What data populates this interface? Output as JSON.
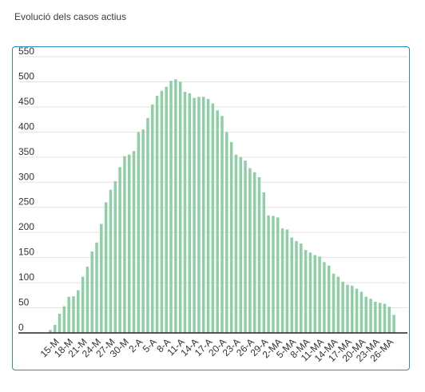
{
  "page_title": "Evolució dels casos actius",
  "chart_data": {
    "type": "bar",
    "title": "",
    "xlabel": "",
    "ylabel": "",
    "ylim": [
      0,
      550
    ],
    "yticks": [
      0,
      50,
      100,
      150,
      200,
      250,
      300,
      350,
      400,
      450,
      500,
      550
    ],
    "grid": true,
    "legend": "none",
    "bar_color": "#8fcfa6",
    "axis_color": "#222222",
    "grid_color": "#e2e2e2",
    "categories": [
      "14-M",
      "15-M",
      "16-M",
      "17-M",
      "18-M",
      "19-M",
      "20-M",
      "21-M",
      "22-M",
      "23-M",
      "24-M",
      "25-M",
      "26-M",
      "27-M",
      "28-M",
      "29-M",
      "30-M",
      "31-M",
      "1-A",
      "2-A",
      "3-A",
      "4-A",
      "5-A",
      "6-A",
      "7-A",
      "8-A",
      "9-A",
      "10-A",
      "11-A",
      "12-A",
      "13-A",
      "14-A",
      "15-A",
      "16-A",
      "17-A",
      "18-A",
      "19-A",
      "20-A",
      "21-A",
      "22-A",
      "23-A",
      "24-A",
      "25-A",
      "26-A",
      "27-A",
      "28-A",
      "29-A",
      "30-A",
      "1-MA",
      "2-MA",
      "3-MA",
      "4-MA",
      "5-MA",
      "6-MA",
      "7-MA",
      "8-MA",
      "9-MA",
      "10-MA",
      "11-MA",
      "12-MA",
      "13-MA",
      "14-MA",
      "15-MA",
      "16-MA",
      "17-MA",
      "18-MA",
      "19-MA",
      "20-MA",
      "21-MA",
      "22-MA",
      "23-MA",
      "24-MA",
      "25-MA",
      "26-MA",
      "27-MA"
    ],
    "values": [
      6,
      16,
      38,
      53,
      72,
      73,
      85,
      112,
      132,
      162,
      180,
      217,
      260,
      285,
      302,
      330,
      352,
      355,
      362,
      400,
      405,
      428,
      455,
      472,
      482,
      490,
      502,
      505,
      500,
      480,
      477,
      468,
      470,
      470,
      466,
      457,
      443,
      432,
      400,
      380,
      355,
      350,
      343,
      328,
      320,
      310,
      280,
      234,
      233,
      230,
      208,
      206,
      190,
      183,
      178,
      165,
      160,
      155,
      152,
      141,
      134,
      118,
      112,
      102,
      96,
      94,
      88,
      82,
      72,
      68,
      62,
      60,
      58,
      52,
      36
    ],
    "xtick_labels": [
      "15-M",
      "18-M",
      "21-M",
      "24-M",
      "27-M",
      "30-M",
      "2-A",
      "5-A",
      "8-A",
      "11-A",
      "14-A",
      "17-A",
      "20-A",
      "23-A",
      "26-A",
      "29-A",
      "2-MA",
      "5-MA",
      "8-MA",
      "11-MA",
      "14-MA",
      "17-MA",
      "20-MA",
      "23-MA",
      "26-MA"
    ],
    "xtick_start_index": 1,
    "xtick_step": 3
  }
}
